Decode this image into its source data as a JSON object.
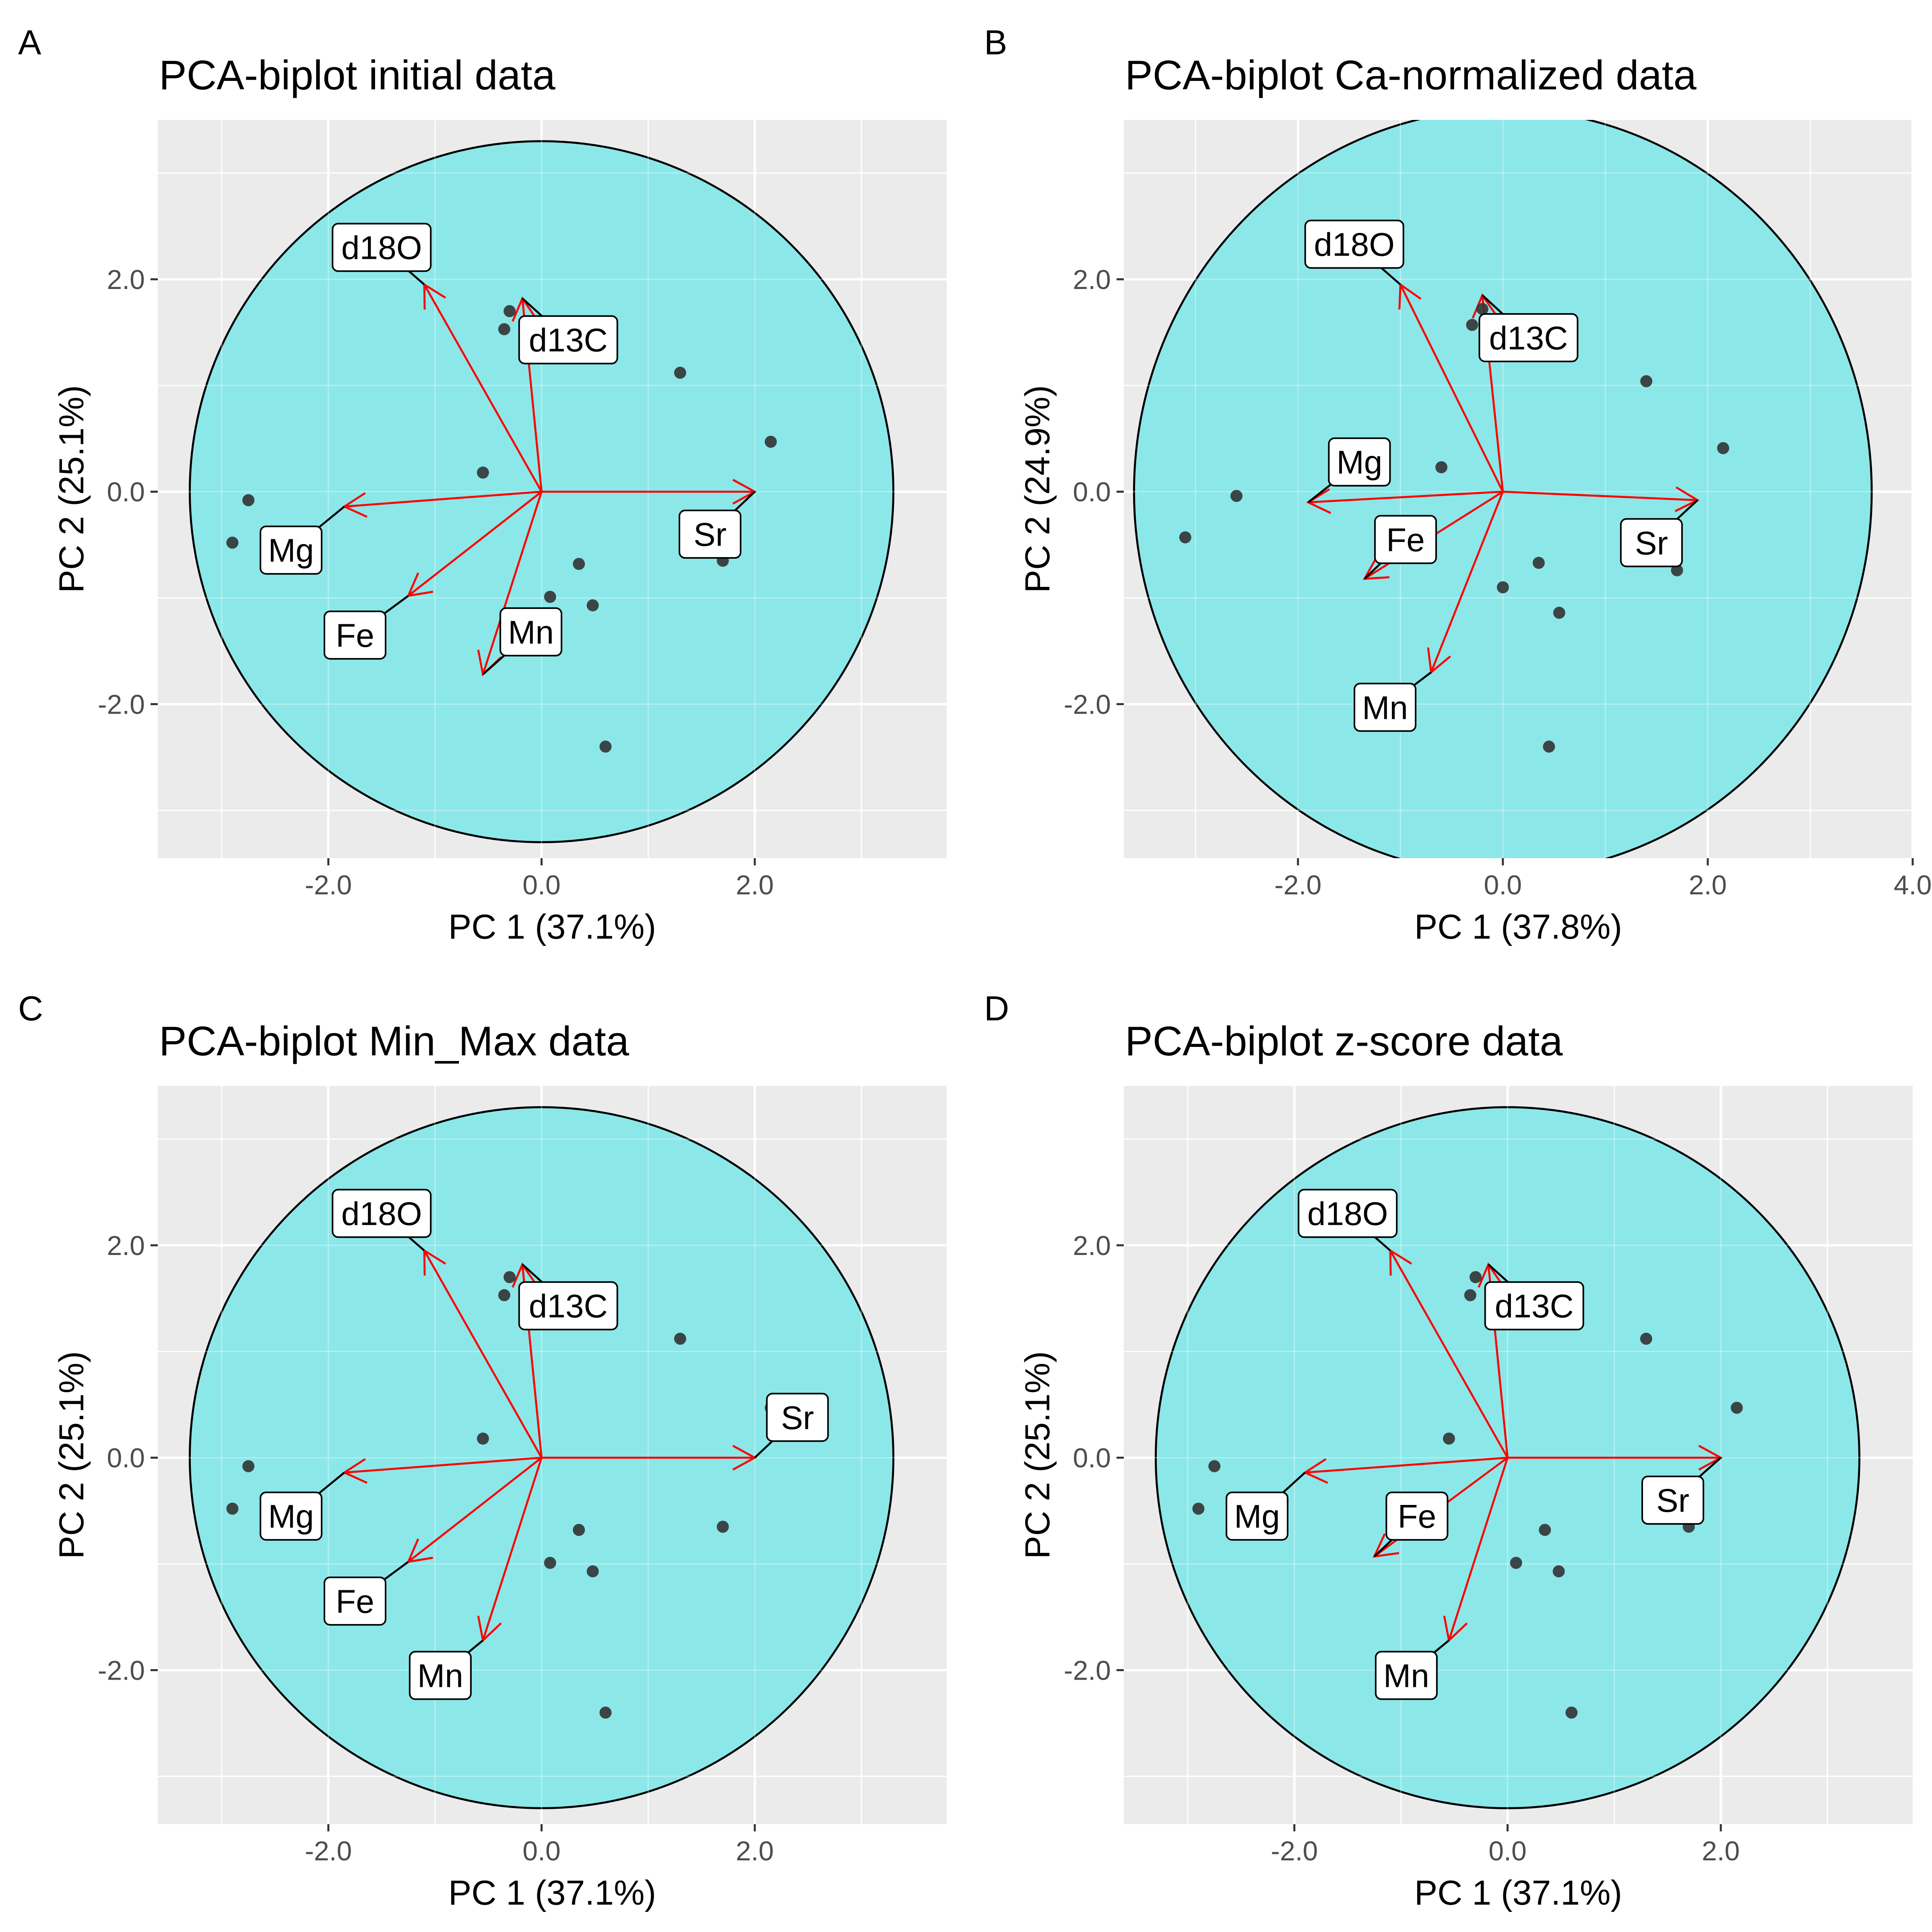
{
  "chart_data": [
    {
      "panel": "A",
      "type": "scatter",
      "title": "PCA-biplot initial data",
      "xlabel": "PC 1 (37.1%)",
      "ylabel": "PC 2 (25.1%)",
      "xlim": [
        -3.6,
        3.8
      ],
      "ylim": [
        -3.45,
        3.5
      ],
      "x_ticks": [
        -2.0,
        0.0,
        2.0
      ],
      "y_ticks": [
        -2.0,
        0.0,
        2.0
      ],
      "grid": true,
      "circle": {
        "fill": "#8ae7e9",
        "stroke": "#000000",
        "center": [
          0,
          0
        ],
        "radius": 3.3
      },
      "points": [
        {
          "x": -2.9,
          "y": -0.48
        },
        {
          "x": -2.75,
          "y": -0.08
        },
        {
          "x": -0.55,
          "y": 0.18
        },
        {
          "x": -0.3,
          "y": 1.7
        },
        {
          "x": -0.35,
          "y": 1.53
        },
        {
          "x": 0.25,
          "y": 1.49
        },
        {
          "x": 1.3,
          "y": 1.12
        },
        {
          "x": 2.15,
          "y": 0.47
        },
        {
          "x": 1.7,
          "y": -0.65
        },
        {
          "x": 0.35,
          "y": -0.68
        },
        {
          "x": 0.08,
          "y": -0.99
        },
        {
          "x": 0.48,
          "y": -1.07
        },
        {
          "x": 0.6,
          "y": -2.4
        }
      ],
      "loadings": [
        {
          "name": "d18O",
          "x": -1.1,
          "y": 1.95
        },
        {
          "name": "d13C",
          "x": -0.18,
          "y": 1.82
        },
        {
          "name": "Sr",
          "x": 2.0,
          "y": 0.0
        },
        {
          "name": "Mg",
          "x": -1.85,
          "y": -0.14
        },
        {
          "name": "Fe",
          "x": -1.25,
          "y": -0.98
        },
        {
          "name": "Mn",
          "x": -0.55,
          "y": -1.72
        }
      ],
      "labels": [
        {
          "text": "d18O",
          "x": -1.5,
          "y": 2.3
        },
        {
          "text": "d13C",
          "x": 0.25,
          "y": 1.43
        },
        {
          "text": "Sr",
          "x": 1.58,
          "y": -0.4
        },
        {
          "text": "Mg",
          "x": -2.35,
          "y": -0.55
        },
        {
          "text": "Fe",
          "x": -1.75,
          "y": -1.35
        },
        {
          "text": "Mn",
          "x": -0.1,
          "y": -1.32
        }
      ]
    },
    {
      "panel": "B",
      "type": "scatter",
      "title": "PCA-biplot Ca-normalized data",
      "xlabel": "PC 1 (37.8%)",
      "ylabel": "PC 2 (24.9%)",
      "xlim": [
        -3.7,
        4.0
      ],
      "ylim": [
        -3.45,
        3.5
      ],
      "x_ticks": [
        -2.0,
        0.0,
        2.0,
        4.0
      ],
      "y_ticks": [
        -2.0,
        0.0,
        2.0
      ],
      "grid": true,
      "circle": {
        "fill": "#8ae7e9",
        "stroke": "#000000",
        "center": [
          0,
          0
        ],
        "radius": 3.6
      },
      "points": [
        {
          "x": -3.1,
          "y": -0.43
        },
        {
          "x": -2.6,
          "y": -0.04
        },
        {
          "x": -0.6,
          "y": 0.23
        },
        {
          "x": -0.2,
          "y": 1.72
        },
        {
          "x": -0.3,
          "y": 1.57
        },
        {
          "x": 0.3,
          "y": 1.45
        },
        {
          "x": 1.4,
          "y": 1.04
        },
        {
          "x": 2.15,
          "y": 0.41
        },
        {
          "x": 1.7,
          "y": -0.74
        },
        {
          "x": 0.35,
          "y": -0.67
        },
        {
          "x": 0.0,
          "y": -0.9
        },
        {
          "x": 0.55,
          "y": -1.14
        },
        {
          "x": 0.45,
          "y": -2.4
        }
      ],
      "loadings": [
        {
          "name": "d18O",
          "x": -1.0,
          "y": 1.95
        },
        {
          "name": "d13C",
          "x": -0.2,
          "y": 1.85
        },
        {
          "name": "Sr",
          "x": 1.9,
          "y": -0.08
        },
        {
          "name": "Mg",
          "x": -1.9,
          "y": -0.1
        },
        {
          "name": "Fe",
          "x": -1.35,
          "y": -0.82
        },
        {
          "name": "Mn",
          "x": -0.7,
          "y": -1.7
        }
      ],
      "labels": [
        {
          "text": "d18O",
          "x": -1.45,
          "y": 2.33
        },
        {
          "text": "d13C",
          "x": 0.25,
          "y": 1.45
        },
        {
          "text": "Sr",
          "x": 1.45,
          "y": -0.48
        },
        {
          "text": "Mg",
          "x": -1.4,
          "y": 0.28
        },
        {
          "text": "Fe",
          "x": -0.95,
          "y": -0.45
        },
        {
          "text": "Mn",
          "x": -1.15,
          "y": -2.03
        }
      ]
    },
    {
      "panel": "C",
      "type": "scatter",
      "title": "PCA-biplot Min_Max data",
      "xlabel": "PC 1 (37.1%)",
      "ylabel": "PC 2 (25.1%)",
      "xlim": [
        -3.6,
        3.8
      ],
      "ylim": [
        -3.45,
        3.5
      ],
      "x_ticks": [
        -2.0,
        0.0,
        2.0
      ],
      "y_ticks": [
        -2.0,
        0.0,
        2.0
      ],
      "grid": true,
      "circle": {
        "fill": "#8ae7e9",
        "stroke": "#000000",
        "center": [
          0,
          0
        ],
        "radius": 3.3
      },
      "points": [
        {
          "x": -2.9,
          "y": -0.48
        },
        {
          "x": -2.75,
          "y": -0.08
        },
        {
          "x": -0.55,
          "y": 0.18
        },
        {
          "x": -0.3,
          "y": 1.7
        },
        {
          "x": -0.35,
          "y": 1.53
        },
        {
          "x": 0.25,
          "y": 1.49
        },
        {
          "x": 1.3,
          "y": 1.12
        },
        {
          "x": 2.15,
          "y": 0.47
        },
        {
          "x": 1.7,
          "y": -0.65
        },
        {
          "x": 0.35,
          "y": -0.68
        },
        {
          "x": 0.08,
          "y": -0.99
        },
        {
          "x": 0.48,
          "y": -1.07
        },
        {
          "x": 0.6,
          "y": -2.4
        }
      ],
      "loadings": [
        {
          "name": "d18O",
          "x": -1.1,
          "y": 1.95
        },
        {
          "name": "d13C",
          "x": -0.18,
          "y": 1.82
        },
        {
          "name": "Sr",
          "x": 2.0,
          "y": 0.0
        },
        {
          "name": "Mg",
          "x": -1.85,
          "y": -0.14
        },
        {
          "name": "Fe",
          "x": -1.25,
          "y": -0.98
        },
        {
          "name": "Mn",
          "x": -0.55,
          "y": -1.72
        }
      ],
      "labels": [
        {
          "text": "d18O",
          "x": -1.5,
          "y": 2.3
        },
        {
          "text": "d13C",
          "x": 0.25,
          "y": 1.43
        },
        {
          "text": "Sr",
          "x": 2.4,
          "y": 0.38
        },
        {
          "text": "Mg",
          "x": -2.35,
          "y": -0.55
        },
        {
          "text": "Fe",
          "x": -1.75,
          "y": -1.35
        },
        {
          "text": "Mn",
          "x": -0.95,
          "y": -2.05
        }
      ]
    },
    {
      "panel": "D",
      "type": "scatter",
      "title": "PCA-biplot z-score data",
      "xlabel": "PC 1 (37.1%)",
      "ylabel": "PC 2 (25.1%)",
      "xlim": [
        -3.6,
        3.8
      ],
      "ylim": [
        -3.45,
        3.5
      ],
      "x_ticks": [
        -2.0,
        0.0,
        2.0
      ],
      "y_ticks": [
        -2.0,
        0.0,
        2.0
      ],
      "grid": true,
      "circle": {
        "fill": "#8ae7e9",
        "stroke": "#000000",
        "center": [
          0,
          0
        ],
        "radius": 3.3
      },
      "points": [
        {
          "x": -2.9,
          "y": -0.48
        },
        {
          "x": -2.75,
          "y": -0.08
        },
        {
          "x": -0.55,
          "y": 0.18
        },
        {
          "x": -0.3,
          "y": 1.7
        },
        {
          "x": -0.35,
          "y": 1.53
        },
        {
          "x": 0.25,
          "y": 1.49
        },
        {
          "x": 1.3,
          "y": 1.12
        },
        {
          "x": 2.15,
          "y": 0.47
        },
        {
          "x": 1.7,
          "y": -0.65
        },
        {
          "x": 0.35,
          "y": -0.68
        },
        {
          "x": 0.08,
          "y": -0.99
        },
        {
          "x": 0.48,
          "y": -1.07
        },
        {
          "x": 0.6,
          "y": -2.4
        }
      ],
      "loadings": [
        {
          "name": "d18O",
          "x": -1.1,
          "y": 1.95
        },
        {
          "name": "d13C",
          "x": -0.18,
          "y": 1.82
        },
        {
          "name": "Sr",
          "x": 2.0,
          "y": 0.0
        },
        {
          "name": "Mg",
          "x": -1.9,
          "y": -0.14
        },
        {
          "name": "Fe",
          "x": -1.25,
          "y": -0.93
        },
        {
          "name": "Mn",
          "x": -0.55,
          "y": -1.72
        }
      ],
      "labels": [
        {
          "text": "d18O",
          "x": -1.5,
          "y": 2.3
        },
        {
          "text": "d13C",
          "x": 0.25,
          "y": 1.43
        },
        {
          "text": "Sr",
          "x": 1.55,
          "y": -0.4
        },
        {
          "text": "Mg",
          "x": -2.35,
          "y": -0.55
        },
        {
          "text": "Fe",
          "x": -0.85,
          "y": -0.55
        },
        {
          "text": "Mn",
          "x": -0.95,
          "y": -2.05
        }
      ]
    }
  ]
}
